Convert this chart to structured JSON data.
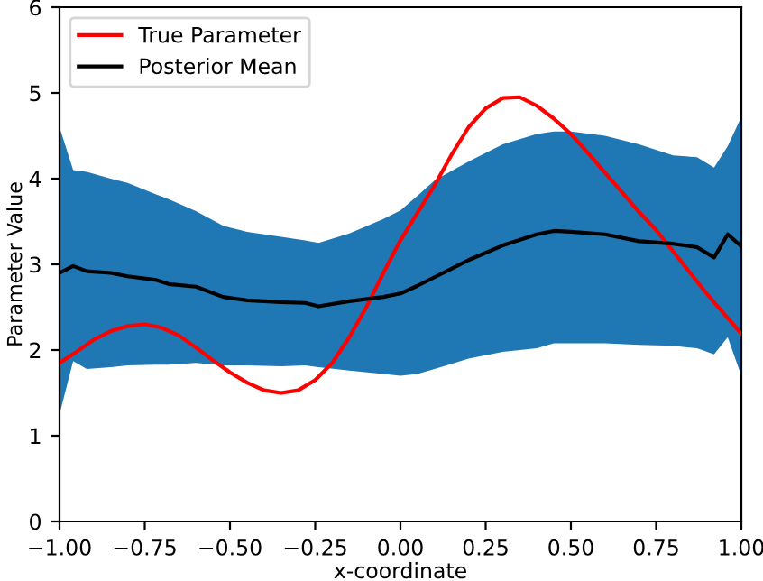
{
  "chart_data": {
    "type": "line",
    "xlabel": "x-coordinate",
    "ylabel": "Parameter Value",
    "xlim": [
      -1,
      1
    ],
    "ylim": [
      0,
      6
    ],
    "xticks": [
      {
        "value": -1,
        "label": "−1.00"
      },
      {
        "value": -0.75,
        "label": "−0.75"
      },
      {
        "value": -0.5,
        "label": "−0.50"
      },
      {
        "value": -0.25,
        "label": "−0.25"
      },
      {
        "value": 0,
        "label": "0.00"
      },
      {
        "value": 0.25,
        "label": "0.25"
      },
      {
        "value": 0.5,
        "label": "0.50"
      },
      {
        "value": 0.75,
        "label": "0.75"
      },
      {
        "value": 1,
        "label": "1.00"
      }
    ],
    "yticks": [
      0,
      1,
      2,
      3,
      4,
      5,
      6
    ],
    "grid": false,
    "legend": "top left",
    "marker": "none",
    "line_style": "solid",
    "series": [
      {
        "name": "True Parameter",
        "color": "#ff0000",
        "x": [
          -1,
          -0.95,
          -0.9,
          -0.85,
          -0.8,
          -0.75,
          -0.7,
          -0.65,
          -0.6,
          -0.55,
          -0.5,
          -0.45,
          -0.4,
          -0.35,
          -0.3,
          -0.25,
          -0.2,
          -0.15,
          -0.1,
          -0.05,
          0,
          0.05,
          0.1,
          0.15,
          0.2,
          0.25,
          0.3,
          0.35,
          0.4,
          0.45,
          0.5,
          0.55,
          0.6,
          0.65,
          0.7,
          0.75,
          0.8,
          0.85,
          0.9,
          0.95,
          1
        ],
        "values": [
          1.85,
          1.98,
          2.12,
          2.22,
          2.28,
          2.3,
          2.26,
          2.17,
          2.03,
          1.88,
          1.74,
          1.62,
          1.53,
          1.5,
          1.53,
          1.65,
          1.85,
          2.15,
          2.5,
          2.9,
          3.28,
          3.6,
          3.92,
          4.28,
          4.6,
          4.82,
          4.94,
          4.95,
          4.85,
          4.7,
          4.52,
          4.3,
          4.07,
          3.84,
          3.61,
          3.4,
          3.15,
          2.9,
          2.65,
          2.42,
          2.19
        ]
      },
      {
        "name": "Posterior Mean",
        "color": "#000000",
        "x": [
          -1,
          -0.96,
          -0.92,
          -0.85,
          -0.8,
          -0.72,
          -0.68,
          -0.6,
          -0.52,
          -0.45,
          -0.35,
          -0.28,
          -0.24,
          -0.15,
          -0.05,
          0,
          0.05,
          0.1,
          0.2,
          0.3,
          0.4,
          0.45,
          0.5,
          0.6,
          0.7,
          0.8,
          0.87,
          0.92,
          0.96,
          1
        ],
        "values": [
          2.9,
          2.98,
          2.92,
          2.9,
          2.86,
          2.82,
          2.77,
          2.74,
          2.62,
          2.58,
          2.56,
          2.55,
          2.51,
          2.57,
          2.62,
          2.66,
          2.75,
          2.85,
          3.05,
          3.22,
          3.35,
          3.39,
          3.38,
          3.35,
          3.27,
          3.24,
          3.2,
          3.08,
          3.35,
          3.21
        ],
        "lower": [
          1.25,
          1.87,
          1.78,
          1.8,
          1.82,
          1.83,
          1.83,
          1.85,
          1.82,
          1.82,
          1.81,
          1.82,
          1.8,
          1.76,
          1.72,
          1.7,
          1.72,
          1.78,
          1.9,
          1.98,
          2.02,
          2.08,
          2.08,
          2.08,
          2.06,
          2.05,
          2.02,
          1.95,
          2.15,
          1.7
        ],
        "upper": [
          4.6,
          4.1,
          4.08,
          4.0,
          3.95,
          3.82,
          3.76,
          3.62,
          3.45,
          3.38,
          3.32,
          3.28,
          3.25,
          3.36,
          3.53,
          3.63,
          3.8,
          3.98,
          4.2,
          4.4,
          4.52,
          4.55,
          4.55,
          4.5,
          4.4,
          4.27,
          4.25,
          4.13,
          4.38,
          4.72
        ]
      }
    ]
  }
}
